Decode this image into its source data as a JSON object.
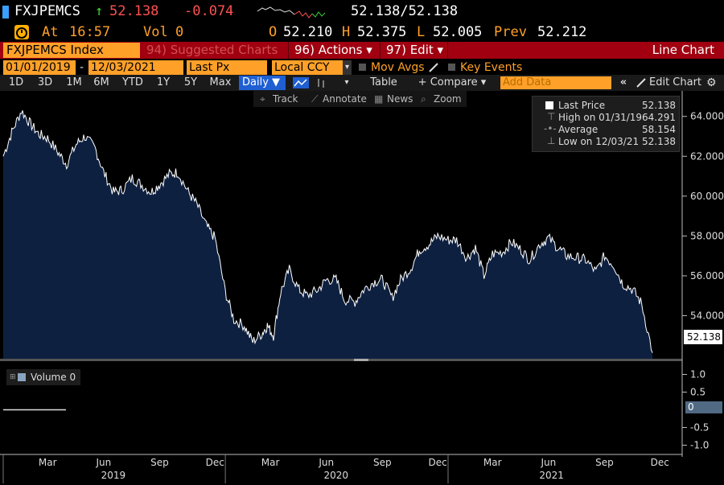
{
  "quote": {
    "ticker": "FXJPEMCS",
    "arrow": "↑",
    "last": "52.138",
    "change": "-0.074",
    "bid_ask": "52.138/52.138",
    "at_label": "At",
    "time": "16:57",
    "vol_label": "Vol",
    "vol": "0",
    "open_label": "O",
    "open": "52.210",
    "high_label": "H",
    "high": "52.375",
    "low_label": "L",
    "low": "52.005",
    "prev_label": "Prev",
    "prev": "52.212"
  },
  "titlebar": {
    "security": "FXJPEMCS Index",
    "suggested": "94) Suggested Charts",
    "actions": "96) Actions ▾",
    "edit": "97) Edit ▾",
    "chart_type": "Line Chart"
  },
  "controls": {
    "start_date": "01/01/2019",
    "dash": "-",
    "end_date": "12/03/2021",
    "field": "Last Px",
    "currency": "Local CCY",
    "mov_avgs": "Mov Avgs",
    "key_events": "Key Events"
  },
  "periods": {
    "items": [
      "1D",
      "3D",
      "1M",
      "6M",
      "YTD",
      "1Y",
      "5Y",
      "Max"
    ],
    "frequency": "Daily ▼",
    "table": "Table",
    "compare": "+ Compare ▾",
    "add_data_placeholder": "Add Data",
    "edit_chart": "Edit Chart"
  },
  "tools": {
    "track": "Track",
    "annotate": "Annotate",
    "news": "News",
    "zoom": "Zoom"
  },
  "legend": {
    "last_price_label": "Last Price",
    "last_price": "52.138",
    "high_label": "High on 01/31/19",
    "high": "64.291",
    "average_label": "Average",
    "average": "58.154",
    "low_label": "Low on 12/03/21",
    "low": "52.138"
  },
  "last_marker": "52.138",
  "volume_legend": "Volume 0",
  "volume_marker": "0",
  "colors": {
    "accent_orange": "#ffa028",
    "title_red": "#a00010",
    "area_fill": "#0e2040",
    "line": "#ffffff",
    "down_red": "#ff5050",
    "up_green": "#3cd23c"
  },
  "chart_data": {
    "type": "area",
    "y_ticks": [
      "64.000",
      "62.000",
      "60.000",
      "58.000",
      "56.000",
      "54.000"
    ],
    "ylim": [
      51.8,
      65.2
    ],
    "vol_ticks": [
      "1.0",
      "0.5",
      "-0.5",
      "-1.0"
    ],
    "month_ticks": [
      "Mar",
      "Jun",
      "Sep",
      "Dec",
      "Mar",
      "Jun",
      "Sep",
      "Dec",
      "Mar",
      "Jun",
      "Sep",
      "Dec"
    ],
    "year_labels": [
      "2019",
      "2020",
      "2021"
    ],
    "series": [
      {
        "name": "Last Price",
        "x": [
          "2019-01-01",
          "2019-01-15",
          "2019-01-31",
          "2019-02-15",
          "2019-03-01",
          "2019-03-15",
          "2019-04-01",
          "2019-04-15",
          "2019-05-01",
          "2019-05-15",
          "2019-06-01",
          "2019-06-15",
          "2019-07-01",
          "2019-07-15",
          "2019-08-01",
          "2019-08-15",
          "2019-09-01",
          "2019-09-15",
          "2019-10-01",
          "2019-10-15",
          "2019-11-01",
          "2019-11-15",
          "2019-12-01",
          "2019-12-15",
          "2020-01-01",
          "2020-01-15",
          "2020-02-01",
          "2020-02-15",
          "2020-03-01",
          "2020-03-10",
          "2020-03-20",
          "2020-04-01",
          "2020-04-15",
          "2020-05-01",
          "2020-05-15",
          "2020-06-01",
          "2020-06-15",
          "2020-07-01",
          "2020-07-15",
          "2020-08-01",
          "2020-08-15",
          "2020-09-01",
          "2020-09-15",
          "2020-10-01",
          "2020-10-15",
          "2020-11-01",
          "2020-11-15",
          "2020-12-01",
          "2020-12-15",
          "2021-01-01",
          "2021-01-15",
          "2021-02-01",
          "2021-02-15",
          "2021-03-01",
          "2021-03-15",
          "2021-04-01",
          "2021-04-15",
          "2021-05-01",
          "2021-05-15",
          "2021-06-01",
          "2021-06-15",
          "2021-07-01",
          "2021-07-15",
          "2021-08-01",
          "2021-08-15",
          "2021-09-01",
          "2021-09-15",
          "2021-10-01",
          "2021-10-15",
          "2021-11-01",
          "2021-11-15",
          "2021-12-03"
        ],
        "y": [
          62.0,
          63.2,
          64.29,
          63.6,
          63.1,
          62.9,
          62.2,
          61.6,
          62.6,
          63.0,
          62.4,
          61.2,
          60.2,
          60.3,
          60.9,
          60.6,
          60.2,
          60.6,
          61.1,
          61.2,
          60.2,
          59.6,
          58.5,
          57.9,
          55.2,
          53.8,
          53.5,
          52.7,
          53.1,
          53.5,
          53.0,
          55.2,
          56.3,
          55.3,
          55.0,
          55.3,
          55.8,
          55.8,
          54.8,
          54.7,
          55.3,
          55.7,
          55.8,
          54.9,
          55.8,
          56.4,
          57.3,
          57.6,
          58.0,
          57.8,
          57.8,
          56.9,
          57.4,
          56.0,
          57.1,
          57.2,
          57.7,
          57.3,
          56.8,
          57.6,
          57.9,
          57.4,
          57.0,
          56.9,
          56.8,
          56.2,
          57.0,
          56.5,
          55.6,
          55.3,
          54.6,
          52.138
        ]
      }
    ]
  }
}
